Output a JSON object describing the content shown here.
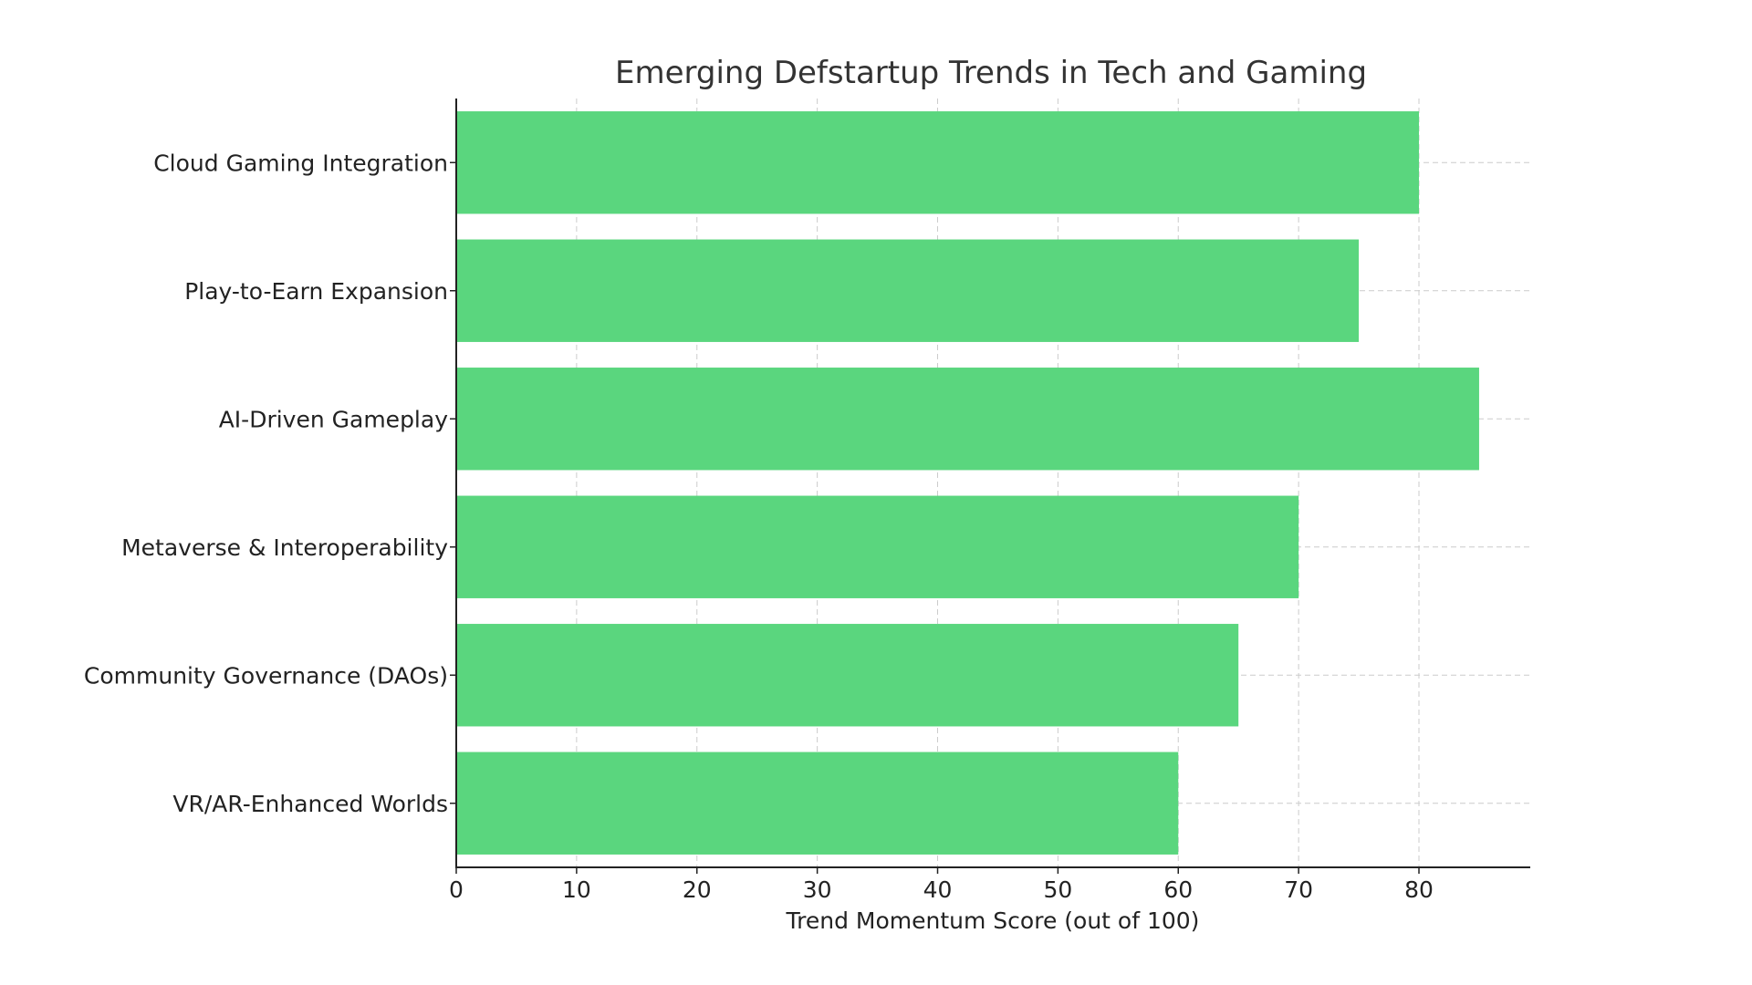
{
  "chart_data": {
    "type": "bar",
    "orientation": "horizontal",
    "title": "Emerging Defstartup Trends in Tech and Gaming",
    "xlabel": "Trend Momentum Score (out of 100)",
    "ylabel": "",
    "categories": [
      "Cloud Gaming Integration",
      "Play-to-Earn Expansion",
      "AI-Driven Gameplay",
      "Metaverse & Interoperability",
      "Community Governance (DAOs)",
      "VR/AR-Enhanced Worlds"
    ],
    "values": [
      80,
      75,
      85,
      70,
      65,
      60
    ],
    "xlim": [
      0,
      89.25
    ],
    "xticks": [
      0,
      10,
      20,
      30,
      40,
      50,
      60,
      70,
      80
    ],
    "grid": true,
    "bar_color": "#5ad67e"
  }
}
